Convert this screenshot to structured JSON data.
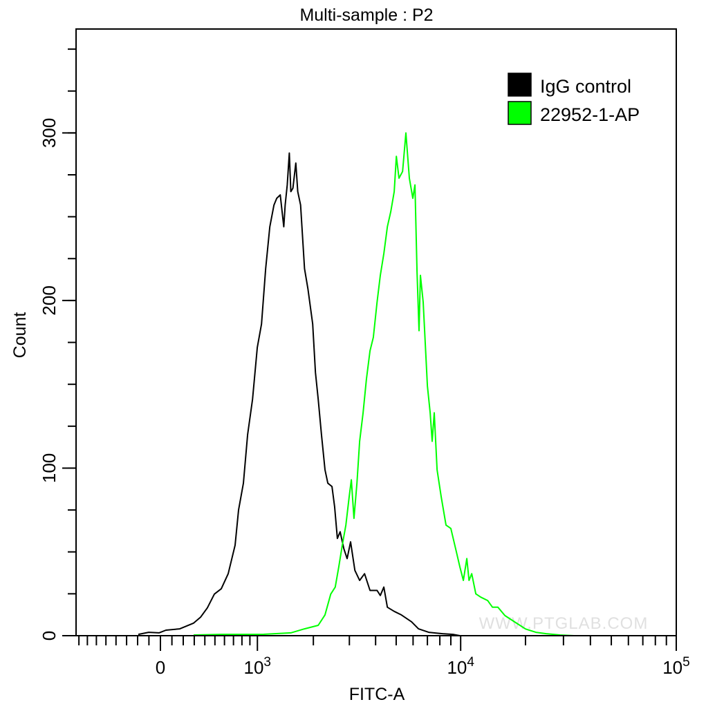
{
  "chart_data": {
    "type": "line",
    "title": "Multi-sample : P2",
    "xlabel": "FITC-A",
    "ylabel": "Count",
    "xscale": "biexponential",
    "xlim": [
      -840,
      100000
    ],
    "ylim": [
      0,
      362
    ],
    "x_ticks": [
      {
        "value": 0,
        "base": "0",
        "exp": ""
      },
      {
        "value": 1000,
        "base": "10",
        "exp": "3"
      },
      {
        "value": 10000,
        "base": "10",
        "exp": "4"
      },
      {
        "value": 100000,
        "base": "10",
        "exp": "5"
      }
    ],
    "y_ticks": [
      {
        "value": 0,
        "label": "0"
      },
      {
        "value": 100,
        "label": "100"
      },
      {
        "value": 200,
        "label": "200"
      },
      {
        "value": 300,
        "label": "300"
      }
    ],
    "grid": false,
    "legend_position": "top-right",
    "series": [
      {
        "name": "IgG control",
        "color": "#000000",
        "x": [
          -194,
          -102,
          -12,
          48,
          169,
          294,
          359,
          425,
          494,
          566,
          641,
          719,
          759,
          818,
          871,
          934,
          999,
          1058,
          1118,
          1180,
          1245,
          1289,
          1347,
          1407,
          1432,
          1468,
          1506,
          1534,
          1573,
          1628,
          1667,
          1723,
          1805,
          1878,
          1984,
          2049,
          2114,
          2195,
          2285,
          2358,
          2472,
          2545,
          2626,
          2707,
          2821,
          2927,
          3041,
          3187,
          3358,
          3545,
          3764,
          4065,
          4211,
          4374,
          4545,
          4894,
          5285,
          5902,
          6358,
          7097,
          8236,
          9211,
          9919
        ],
        "y": [
          0.8,
          2,
          1.7,
          3.3,
          4.1,
          7.5,
          11,
          16.6,
          24.8,
          28,
          37,
          54,
          75,
          91,
          120,
          141,
          172,
          186,
          219,
          244,
          257,
          261,
          263,
          244,
          257,
          269,
          288,
          265,
          267,
          282,
          265,
          257,
          219,
          207,
          186,
          157,
          141,
          120,
          99,
          91,
          89,
          77,
          58,
          62,
          52,
          46,
          56,
          39,
          33,
          37,
          27,
          27,
          24,
          29,
          17,
          14.5,
          12.4,
          8.3,
          4.1,
          2,
          1.2,
          0.8,
          0
        ]
      },
      {
        "name": "22952-1-AP",
        "color": "#00ff00",
        "x": [
          294,
          566,
          1075,
          1534,
          1805,
          2114,
          2285,
          2438,
          2563,
          2666,
          2773,
          2886,
          2993,
          3065,
          3155,
          3260,
          3358,
          3488,
          3618,
          3764,
          3902,
          4065,
          4211,
          4374,
          4545,
          4715,
          4894,
          5008,
          5154,
          5358,
          5553,
          5764,
          5984,
          6122,
          6260,
          6398,
          6496,
          6691,
          7000,
          7211,
          7366,
          7536,
          7764,
          8114,
          8545,
          9000,
          9553,
          9919,
          10293,
          10683,
          10935,
          11260,
          11764,
          12390,
          13341,
          14049,
          14902,
          16049,
          17927,
          20024,
          22357,
          24959,
          28943,
          33577,
          36097
        ],
        "y": [
          0.4,
          0.8,
          0.8,
          1.7,
          4.1,
          6.2,
          12.4,
          24.8,
          29,
          41,
          54,
          66,
          83,
          93,
          70,
          91,
          116,
          133,
          153,
          170,
          178,
          199,
          215,
          228,
          244,
          253,
          265,
          286,
          273,
          277,
          300,
          273,
          261,
          269,
          217,
          182,
          215,
          199,
          149,
          133,
          116,
          133,
          99,
          83,
          66,
          64,
          50,
          41,
          33,
          46,
          33,
          37,
          25,
          23,
          21,
          17,
          17,
          12,
          8,
          4,
          2,
          1.2,
          0.4,
          0,
          0
        ]
      }
    ]
  },
  "watermark": "WWW.PTGLAB.COM"
}
